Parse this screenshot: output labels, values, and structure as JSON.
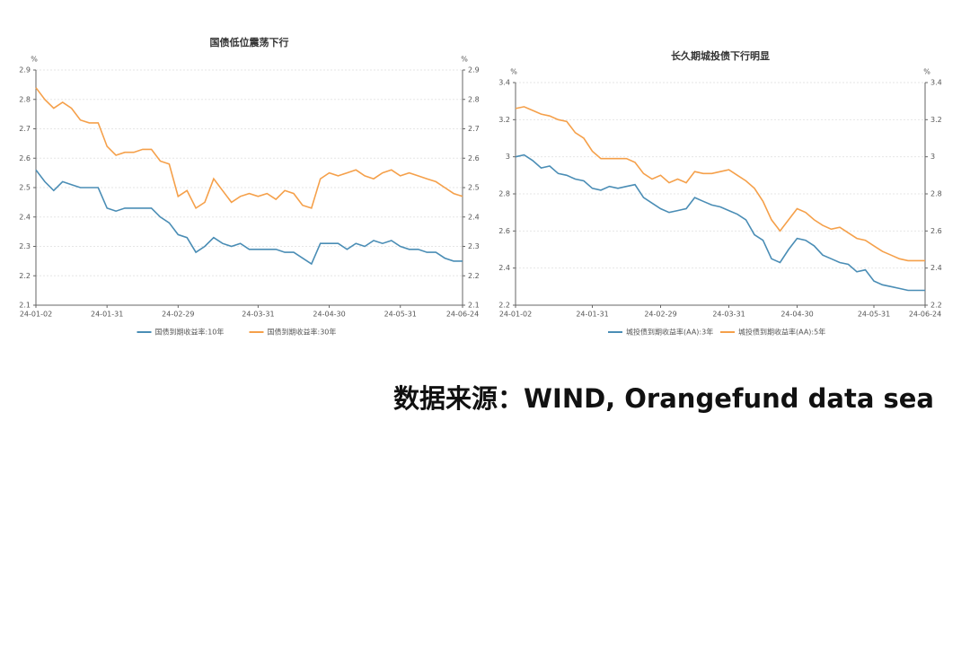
{
  "chart_data": [
    {
      "type": "line",
      "title": "国债低位震荡下行",
      "y_unit": "%",
      "y2_unit": "%",
      "categories": [
        "24-01-02",
        null,
        null,
        null,
        null,
        null,
        null,
        null,
        "24-01-31",
        null,
        null,
        null,
        null,
        null,
        null,
        null,
        "24-02-29",
        null,
        null,
        null,
        null,
        null,
        null,
        null,
        null,
        "24-03-31",
        null,
        null,
        null,
        null,
        null,
        null,
        null,
        "24-04-30",
        null,
        null,
        null,
        null,
        null,
        null,
        null,
        "24-05-31",
        null,
        null,
        null,
        null,
        null,
        null,
        "24-06-24"
      ],
      "series": [
        {
          "name": "国债到期收益率:10年",
          "color": "#4a8db5",
          "values": [
            2.56,
            2.52,
            2.49,
            2.52,
            2.51,
            2.5,
            2.5,
            2.5,
            2.43,
            2.42,
            2.43,
            2.43,
            2.43,
            2.43,
            2.4,
            2.38,
            2.34,
            2.33,
            2.28,
            2.3,
            2.33,
            2.31,
            2.3,
            2.31,
            2.29,
            2.29,
            2.29,
            2.29,
            2.28,
            2.28,
            2.26,
            2.24,
            2.31,
            2.31,
            2.31,
            2.29,
            2.31,
            2.3,
            2.32,
            2.31,
            2.32,
            2.3,
            2.29,
            2.29,
            2.28,
            2.28,
            2.26,
            2.25,
            2.25
          ]
        },
        {
          "name": "国债到期收益率:30年",
          "color": "#f5a04a",
          "values": [
            2.84,
            2.8,
            2.77,
            2.79,
            2.77,
            2.73,
            2.72,
            2.72,
            2.64,
            2.61,
            2.62,
            2.62,
            2.63,
            2.63,
            2.59,
            2.58,
            2.47,
            2.49,
            2.43,
            2.45,
            2.53,
            2.49,
            2.45,
            2.47,
            2.48,
            2.47,
            2.48,
            2.46,
            2.49,
            2.48,
            2.44,
            2.43,
            2.53,
            2.55,
            2.54,
            2.55,
            2.56,
            2.54,
            2.53,
            2.55,
            2.56,
            2.54,
            2.55,
            2.54,
            2.53,
            2.52,
            2.5,
            2.48,
            2.47
          ]
        }
      ],
      "ylim": [
        2.1,
        2.9
      ],
      "yticks": [
        2.1,
        2.2,
        2.3,
        2.4,
        2.5,
        2.6,
        2.7,
        2.8,
        2.9
      ],
      "y2lim": [
        2.1,
        2.9
      ],
      "y2ticks": [
        2.1,
        2.2,
        2.3,
        2.4,
        2.5,
        2.6,
        2.7,
        2.8,
        2.9
      ],
      "grid": true
    },
    {
      "type": "line",
      "title": "长久期城投债下行明显",
      "y_unit": "%",
      "y2_unit": "%",
      "categories": [
        "24-01-02",
        null,
        null,
        null,
        null,
        null,
        null,
        null,
        null,
        "24-01-31",
        null,
        null,
        null,
        null,
        null,
        null,
        null,
        "24-02-29",
        null,
        null,
        null,
        null,
        null,
        null,
        null,
        "24-03-31",
        null,
        null,
        null,
        null,
        null,
        null,
        null,
        "24-04-30",
        null,
        null,
        null,
        null,
        null,
        null,
        null,
        null,
        "24-05-31",
        null,
        null,
        null,
        null,
        null,
        "24-06-24"
      ],
      "series": [
        {
          "name": "城投债到期收益率(AA):3年",
          "color": "#4a8db5",
          "values": [
            3.0,
            3.01,
            2.98,
            2.94,
            2.95,
            2.91,
            2.9,
            2.88,
            2.87,
            2.83,
            2.82,
            2.84,
            2.83,
            2.84,
            2.85,
            2.78,
            2.75,
            2.72,
            2.7,
            2.71,
            2.72,
            2.78,
            2.76,
            2.74,
            2.73,
            2.71,
            2.69,
            2.66,
            2.58,
            2.55,
            2.45,
            2.43,
            2.5,
            2.56,
            2.55,
            2.52,
            2.47,
            2.45,
            2.43,
            2.42,
            2.38,
            2.39,
            2.33,
            2.31,
            2.3,
            2.29,
            2.28,
            2.28,
            2.28
          ]
        },
        {
          "name": "城投债到期收益率(AA):5年",
          "color": "#f5a04a",
          "values": [
            3.26,
            3.27,
            3.25,
            3.23,
            3.22,
            3.2,
            3.19,
            3.13,
            3.1,
            3.03,
            2.99,
            2.99,
            2.99,
            2.99,
            2.97,
            2.91,
            2.88,
            2.9,
            2.86,
            2.88,
            2.86,
            2.92,
            2.91,
            2.91,
            2.92,
            2.93,
            2.9,
            2.87,
            2.83,
            2.76,
            2.66,
            2.6,
            2.66,
            2.72,
            2.7,
            2.66,
            2.63,
            2.61,
            2.62,
            2.59,
            2.56,
            2.55,
            2.52,
            2.49,
            2.47,
            2.45,
            2.44,
            2.44,
            2.44
          ]
        }
      ],
      "ylim": [
        2.2,
        3.4
      ],
      "yticks": [
        2.2,
        2.4,
        2.6,
        2.8,
        3,
        3.2,
        3.4
      ],
      "y2lim": [
        2.2,
        3.4
      ],
      "y2ticks": [
        2.2,
        2.4,
        2.6,
        2.8,
        3,
        3.2,
        3.4
      ],
      "grid": true
    }
  ],
  "source": "数据来源：WIND, Orangefund data sea"
}
